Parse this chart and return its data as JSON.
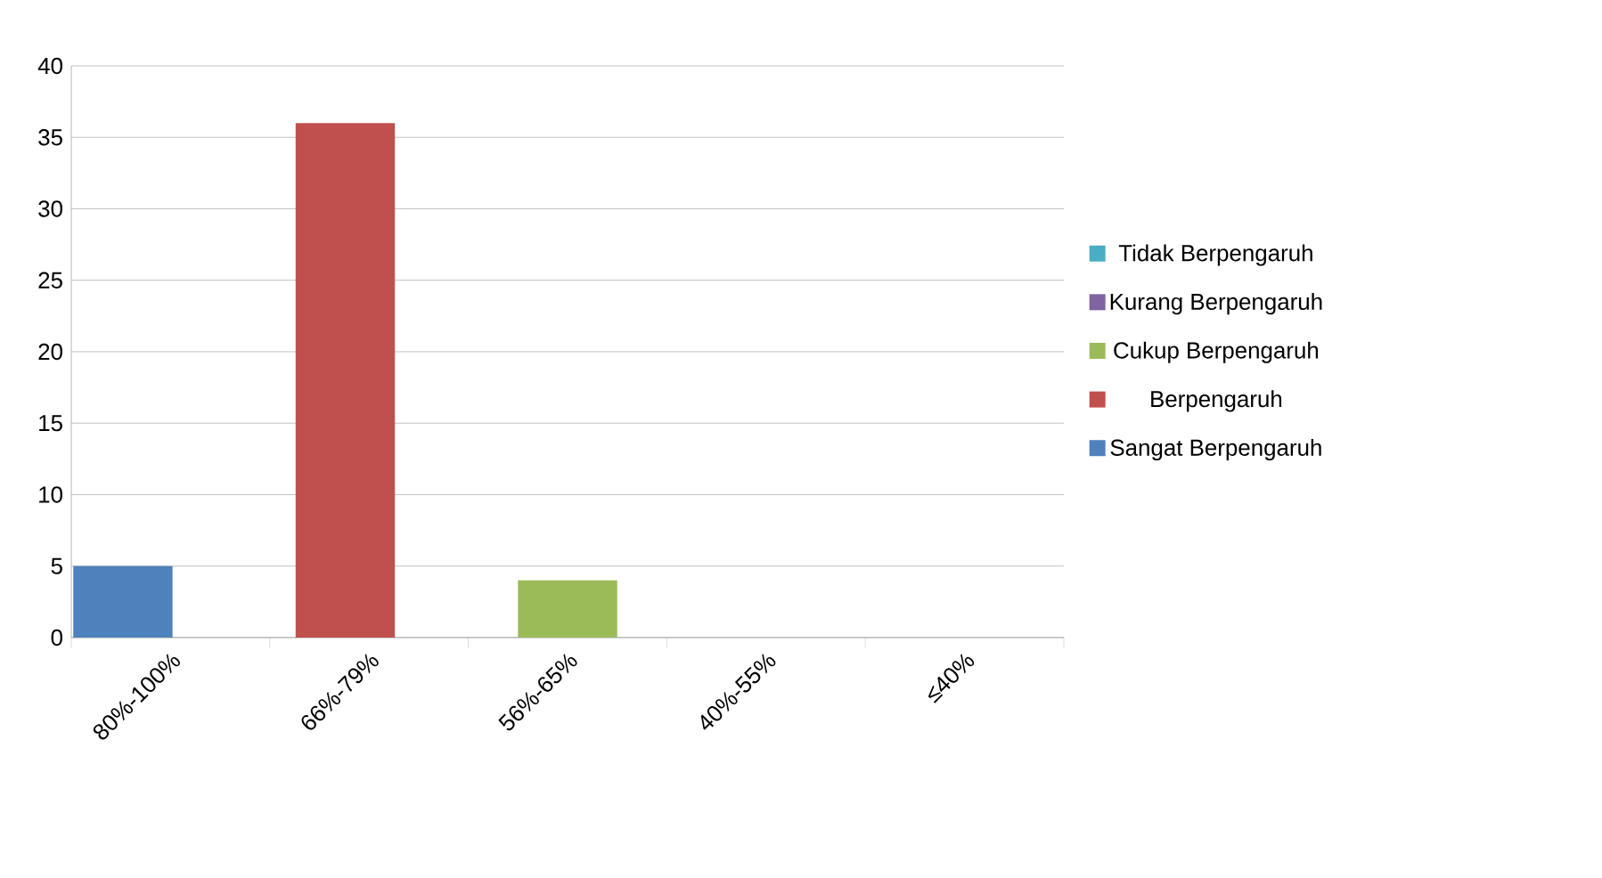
{
  "chart_data": {
    "type": "bar",
    "categories": [
      "80%-100%",
      "66%-79%",
      "56%-65%",
      "40%-55%",
      "≤40%"
    ],
    "series": [
      {
        "name": "Sangat Berpengaruh",
        "color": "#4f81bd",
        "values": [
          5,
          null,
          null,
          null,
          null
        ]
      },
      {
        "name": "Berpengaruh",
        "color": "#c0504d",
        "values": [
          null,
          36,
          null,
          null,
          null
        ]
      },
      {
        "name": "Cukup Berpengaruh",
        "color": "#9bbb59",
        "values": [
          null,
          null,
          4,
          null,
          null
        ]
      },
      {
        "name": "Kurang Berpengaruh",
        "color": "#8064a2",
        "values": [
          null,
          null,
          null,
          0,
          null
        ]
      },
      {
        "name": "Tidak Berpengaruh",
        "color": "#4bacc6",
        "values": [
          null,
          null,
          null,
          null,
          0
        ]
      }
    ],
    "ylim": [
      0,
      40
    ],
    "yticks": [
      0,
      5,
      10,
      15,
      20,
      25,
      30,
      35,
      40
    ],
    "grid": "y",
    "legend": "right"
  }
}
